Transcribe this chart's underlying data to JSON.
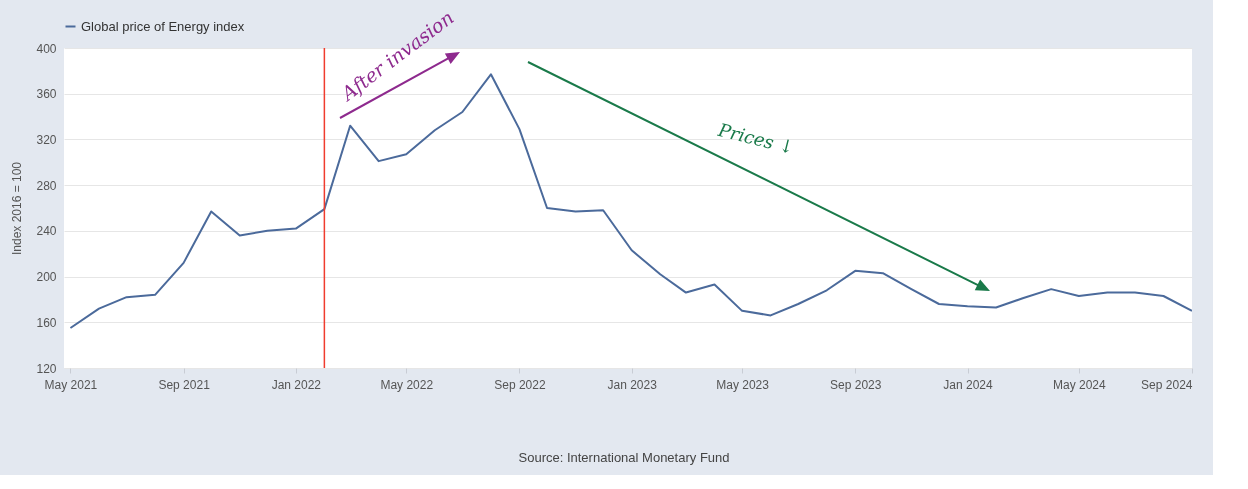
{
  "chart_data": {
    "type": "line",
    "ylabel": "Index 2016 = 100",
    "x": [
      "2021-05",
      "2021-06",
      "2021-07",
      "2021-08",
      "2021-09",
      "2021-10",
      "2021-11",
      "2021-12",
      "2022-01",
      "2022-02",
      "2022-03",
      "2022-04",
      "2022-05",
      "2022-06",
      "2022-07",
      "2022-08",
      "2022-09",
      "2022-10",
      "2022-11",
      "2022-12",
      "2023-01",
      "2023-02",
      "2023-03",
      "2023-04",
      "2023-05",
      "2023-06",
      "2023-07",
      "2023-08",
      "2023-09",
      "2023-10",
      "2023-11",
      "2023-12",
      "2024-01",
      "2024-02",
      "2024-03",
      "2024-04",
      "2024-05",
      "2024-06",
      "2024-07",
      "2024-08",
      "2024-09"
    ],
    "series": [
      {
        "name": "Global price of Energy index",
        "color": "#4b6a9b",
        "values": [
          155,
          172,
          182,
          184,
          212,
          257,
          236,
          240,
          242,
          259,
          332,
          301,
          307,
          328,
          344,
          377,
          329,
          260,
          257,
          258,
          223,
          202,
          186,
          193,
          170,
          166,
          176,
          188,
          205,
          203,
          189,
          176,
          174,
          173,
          181,
          189,
          183,
          186,
          186,
          183,
          170
        ]
      }
    ],
    "xlim": [
      "2021-04-24",
      "2024-09"
    ],
    "xticks": [
      {
        "value": "2021-05",
        "label": "May 2021"
      },
      {
        "value": "2021-09",
        "label": "Sep 2021"
      },
      {
        "value": "2022-01",
        "label": "Jan 2022"
      },
      {
        "value": "2022-05",
        "label": "May 2022"
      },
      {
        "value": "2022-09",
        "label": "Sep 2022"
      },
      {
        "value": "2023-01",
        "label": "Jan 2023"
      },
      {
        "value": "2023-05",
        "label": "May 2023"
      },
      {
        "value": "2023-09",
        "label": "Sep 2023"
      },
      {
        "value": "2024-01",
        "label": "Jan 2024"
      },
      {
        "value": "2024-05",
        "label": "May 2024"
      },
      {
        "value": "2024-09",
        "label": "Sep 2024"
      }
    ],
    "ylim": [
      120,
      400
    ],
    "yticks": [
      120,
      160,
      200,
      240,
      280,
      320,
      360,
      400
    ],
    "ref_lines": [
      {
        "axis": "x",
        "value": "2022-02",
        "color": "#f03c2e"
      }
    ],
    "annotations": [
      "After invasion",
      "Prices ↓",
      "Source: International Monetary Fund"
    ],
    "grid": "y",
    "legend": "top left"
  }
}
